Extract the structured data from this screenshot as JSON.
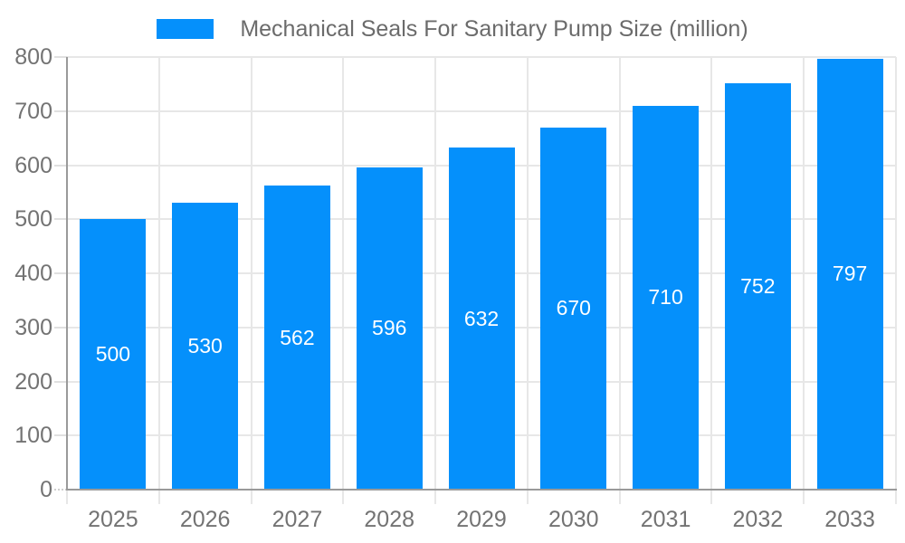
{
  "chart_data": {
    "type": "bar",
    "title": "Mechanical Seals For Sanitary Pump Size (million)",
    "categories": [
      "2025",
      "2026",
      "2027",
      "2028",
      "2029",
      "2030",
      "2031",
      "2032",
      "2033"
    ],
    "values": [
      500,
      530,
      562,
      596,
      632,
      670,
      710,
      752,
      797
    ],
    "value_labels": [
      "500",
      "530",
      "562",
      "596",
      "632",
      "670",
      "710",
      "752",
      "797"
    ],
    "value_label_position": "inside-center",
    "xlabel": "",
    "ylabel": "",
    "ylim": [
      0,
      800
    ],
    "yticks": [
      0,
      100,
      200,
      300,
      400,
      500,
      600,
      700,
      800
    ],
    "grid": true,
    "legend_position": "top-center",
    "colors": {
      "bar": "#0590fb",
      "bar_label_text": "#ffffff",
      "grid_line": "#e7e7e7",
      "axis_line": "#9a9a9a",
      "axis_label_text": "#737373",
      "title_text": "#6b6b6b",
      "background": "#ffffff"
    }
  }
}
